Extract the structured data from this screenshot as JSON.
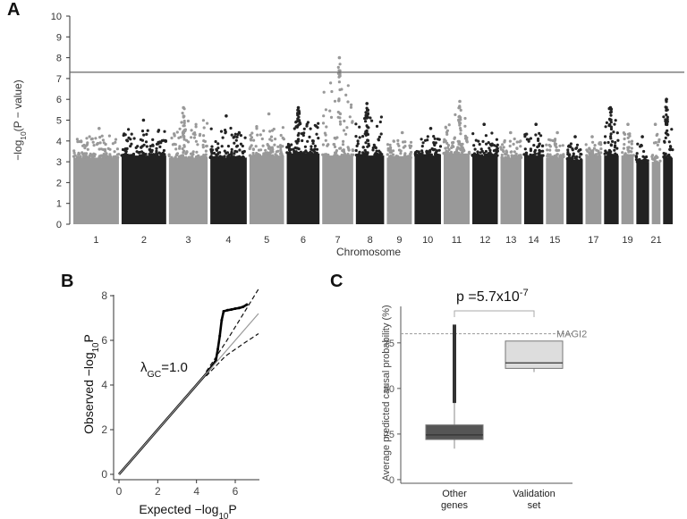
{
  "panels": {
    "a": "A",
    "b": "B",
    "c": "C"
  },
  "chart_data": [
    {
      "id": "A",
      "type": "scatter",
      "subtype": "manhattan",
      "title": "",
      "xlabel": "Chromosome",
      "ylabel": "−log10(P − value)",
      "ylabel_parts": [
        "−log",
        "10",
        "(P − value)"
      ],
      "ylim": [
        0,
        10
      ],
      "yticks": [
        0,
        1,
        2,
        3,
        4,
        5,
        6,
        7,
        8,
        9,
        10
      ],
      "significance_line": 7.3,
      "xtick_labels": [
        "1",
        "2",
        "3",
        "4",
        "5",
        "6",
        "7",
        "8",
        "9",
        "10",
        "11",
        "12",
        "13",
        "14",
        "15",
        "17",
        "19",
        "21"
      ],
      "chromosomes": [
        {
          "chr": "1",
          "color": "#999999",
          "base": 3.2,
          "max": 4.6
        },
        {
          "chr": "2",
          "color": "#222222",
          "base": 3.3,
          "max": 5.0
        },
        {
          "chr": "3",
          "color": "#999999",
          "base": 3.2,
          "max": 5.6
        },
        {
          "chr": "4",
          "color": "#222222",
          "base": 3.2,
          "max": 5.2
        },
        {
          "chr": "5",
          "color": "#999999",
          "base": 3.3,
          "max": 5.3
        },
        {
          "chr": "6",
          "color": "#222222",
          "base": 3.4,
          "max": 5.6
        },
        {
          "chr": "7",
          "color": "#999999",
          "base": 3.3,
          "max": 8.0
        },
        {
          "chr": "8",
          "color": "#222222",
          "base": 3.3,
          "max": 5.8
        },
        {
          "chr": "9",
          "color": "#999999",
          "base": 3.2,
          "max": 4.4
        },
        {
          "chr": "10",
          "color": "#222222",
          "base": 3.3,
          "max": 4.6
        },
        {
          "chr": "11",
          "color": "#999999",
          "base": 3.4,
          "max": 5.9
        },
        {
          "chr": "12",
          "color": "#222222",
          "base": 3.3,
          "max": 4.8
        },
        {
          "chr": "13",
          "color": "#999999",
          "base": 3.2,
          "max": 4.4
        },
        {
          "chr": "14",
          "color": "#222222",
          "base": 3.3,
          "max": 4.8
        },
        {
          "chr": "15",
          "color": "#999999",
          "base": 3.2,
          "max": 4.4
        },
        {
          "chr": "16",
          "color": "#222222",
          "base": 3.1,
          "max": 4.2
        },
        {
          "chr": "17",
          "color": "#999999",
          "base": 3.3,
          "max": 4.2
        },
        {
          "chr": "18",
          "color": "#222222",
          "base": 3.3,
          "max": 5.6
        },
        {
          "chr": "19",
          "color": "#999999",
          "base": 3.3,
          "max": 4.8
        },
        {
          "chr": "20",
          "color": "#222222",
          "base": 3.0,
          "max": 4.2
        },
        {
          "chr": "21",
          "color": "#999999",
          "base": 3.0,
          "max": 4.8
        },
        {
          "chr": "22",
          "color": "#222222",
          "base": 3.2,
          "max": 6.0
        }
      ]
    },
    {
      "id": "B",
      "type": "line",
      "subtype": "qq",
      "xlabel_parts": [
        "Expected −log",
        "10",
        "P"
      ],
      "ylabel_parts": [
        "Observed −log",
        "10",
        "P"
      ],
      "xlim": [
        -0.3,
        7.5
      ],
      "ylim": [
        -0.4,
        8.6
      ],
      "xticks": [
        0,
        2,
        4,
        6
      ],
      "yticks": [
        0,
        2,
        4,
        6,
        8
      ],
      "annotation_parts": [
        "λ",
        "GC",
        "=1.0"
      ],
      "series": [
        {
          "name": "observed",
          "x": [
            0,
            1,
            2,
            3,
            4,
            4.5,
            4.8,
            5.0,
            5.1,
            5.2,
            5.3,
            5.4,
            5.6,
            5.8,
            6.0,
            6.2,
            6.4,
            6.6
          ],
          "y": [
            0,
            1,
            2,
            3,
            4,
            4.5,
            4.85,
            5.1,
            5.6,
            6.2,
            6.9,
            7.3,
            7.35,
            7.38,
            7.42,
            7.45,
            7.5,
            7.6
          ]
        },
        {
          "name": "expected",
          "x": [
            0,
            7.2
          ],
          "y": [
            0,
            7.2
          ]
        },
        {
          "name": "ci_upper",
          "x": [
            4.5,
            5.5,
            6.5,
            7.2
          ],
          "y": [
            4.6,
            5.9,
            7.3,
            8.3
          ]
        },
        {
          "name": "ci_lower",
          "x": [
            4.5,
            5.5,
            6.5,
            7.2
          ],
          "y": [
            4.4,
            5.3,
            5.9,
            6.3
          ]
        }
      ]
    },
    {
      "id": "C",
      "type": "box",
      "ylabel": "Average predicted causal probability (%)",
      "ylim": [
        -2,
        95
      ],
      "yticks": [
        0,
        25,
        50,
        75
      ],
      "categories": [
        "Other genes",
        "Validation set"
      ],
      "category_lines": [
        [
          "Other",
          "genes"
        ],
        [
          "Validation",
          "set"
        ]
      ],
      "boxes": [
        {
          "name": "Other genes",
          "min": 17,
          "q1": 22,
          "median": 24.5,
          "q3": 30,
          "max": 42,
          "outlier_max": 85,
          "color": "#555555"
        },
        {
          "name": "Validation set",
          "min": 59,
          "q1": 61,
          "median": 64,
          "q3": 76,
          "max": 76,
          "color": "#dddddd"
        }
      ],
      "reference_line": {
        "value": 80,
        "label": "MAGI2"
      },
      "pvalue_parts": [
        "p =5.7x10",
        "-7"
      ]
    }
  ]
}
